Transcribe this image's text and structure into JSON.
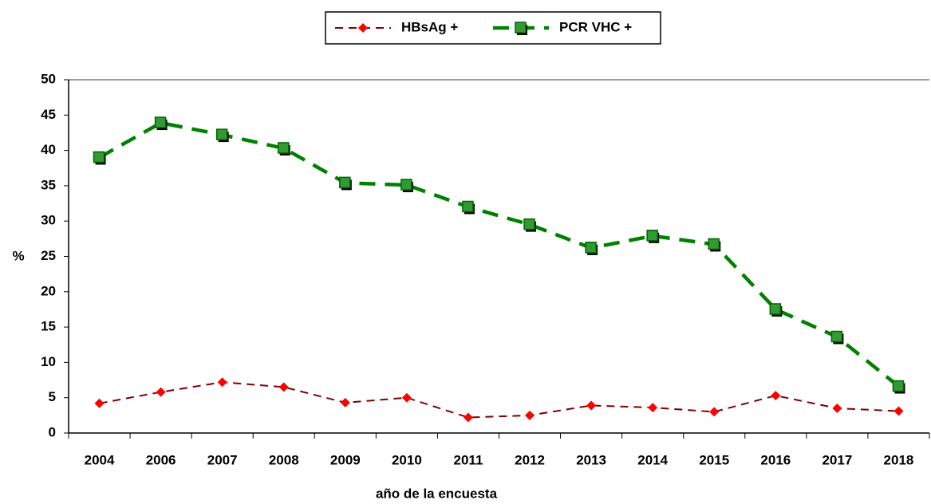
{
  "chart_data": {
    "type": "line",
    "x_label": "año de la encuesta",
    "y_label": "%",
    "categories": [
      "2004",
      "2006",
      "2007",
      "2008",
      "2009",
      "2010",
      "2011",
      "2012",
      "2013",
      "2014",
      "2015",
      "2016",
      "2017",
      "2018"
    ],
    "series": [
      {
        "name": "HBsAg +",
        "color": "#800000",
        "marker_color": "#ff0000",
        "marker": "diamond",
        "values": [
          4.2,
          5.8,
          7.2,
          6.5,
          4.3,
          5.0,
          2.2,
          2.5,
          3.9,
          3.6,
          3.0,
          5.3,
          3.5,
          3.1
        ]
      },
      {
        "name": "PCR VHC +",
        "color": "#008000",
        "marker_color": "#339933",
        "marker": "square",
        "values": [
          39.0,
          43.9,
          42.2,
          40.3,
          35.4,
          35.1,
          32.0,
          29.5,
          26.2,
          27.9,
          26.7,
          17.5,
          13.6,
          6.6
        ]
      }
    ],
    "ylim": [
      0,
      50
    ],
    "yticks": [
      0,
      5,
      10,
      15,
      20,
      25,
      30,
      35,
      40,
      45,
      50
    ],
    "legend": "top"
  }
}
